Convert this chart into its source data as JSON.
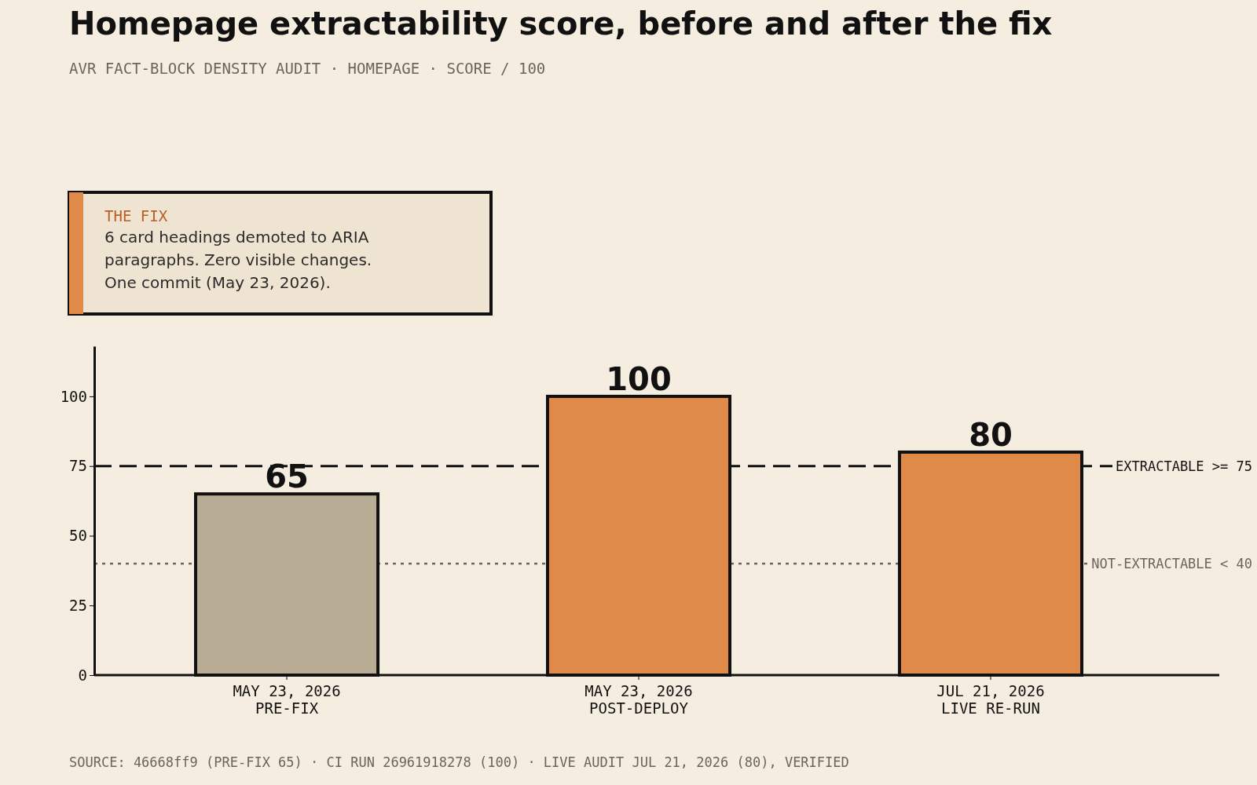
{
  "chart_data": {
    "type": "bar",
    "title": "Homepage extractability score, before and after the fix",
    "subtitle": "AVR FACT-BLOCK DENSITY AUDIT · HOMEPAGE · SCORE / 100",
    "categories": [
      "MAY 23, 2026\nPRE-FIX",
      "MAY 23, 2026\nPOST-DEPLOY",
      "JUL 21, 2026\nLIVE RE-RUN"
    ],
    "values": [
      65,
      100,
      80
    ],
    "colors": [
      "#b8ac94",
      "#e08a4a",
      "#e08a4a"
    ],
    "ylim": [
      0,
      118
    ],
    "yticks": [
      0,
      25,
      50,
      75,
      100
    ],
    "grid": false,
    "data_labels": true,
    "ref_lines": [
      {
        "axis": "y",
        "value": 75,
        "label": "EXTRACTABLE >= 75",
        "color": "#111111",
        "line_style": "dashed"
      },
      {
        "axis": "y",
        "value": 40,
        "label": "NOT-EXTRACTABLE < 40",
        "color": "#6b655c",
        "line_style": "dotted"
      }
    ],
    "annotations": [
      "THE FIX",
      "6 card headings demoted to ARIA\nparagraphs. Zero visible changes.\nOne commit (May 23, 2026).",
      "SOURCE: 46668ff9 (PRE-FIX 65) · CI RUN 26961918278 (100) · LIVE AUDIT JUL 21, 2026 (80), VERIFIED"
    ]
  }
}
